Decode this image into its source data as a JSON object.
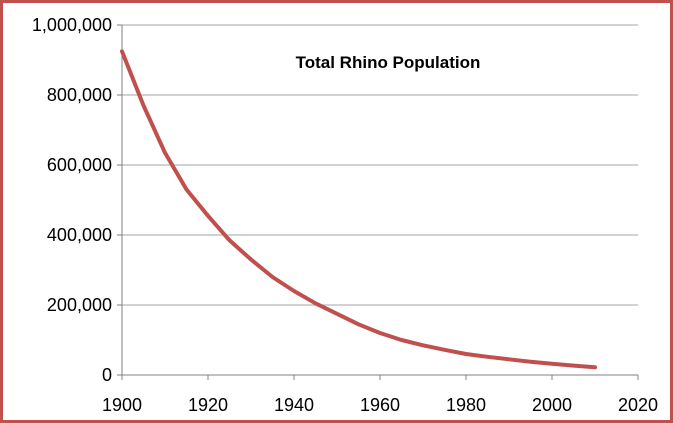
{
  "chart_data": {
    "type": "line",
    "title": "Total Rhino Population",
    "xlabel": "",
    "ylabel": "",
    "xlim": [
      1900,
      2020
    ],
    "ylim": [
      0,
      1000000
    ],
    "x_ticks": [
      1900,
      1920,
      1940,
      1960,
      1980,
      2000,
      2020
    ],
    "x_tick_labels": [
      "1900",
      "1920",
      "1940",
      "1960",
      "1980",
      "2000",
      "2020"
    ],
    "y_ticks": [
      0,
      200000,
      400000,
      600000,
      800000,
      1000000
    ],
    "y_tick_labels": [
      "0",
      "200,000",
      "400,000",
      "600,000",
      "800,000",
      "1,000,000"
    ],
    "grid": "horizontal",
    "legend": "none",
    "series": [
      {
        "color": "#c0504d",
        "x": [
          1900,
          1905,
          1910,
          1915,
          1920,
          1925,
          1930,
          1935,
          1940,
          1945,
          1950,
          1955,
          1960,
          1965,
          1970,
          1975,
          1980,
          1985,
          1990,
          1995,
          2000,
          2005,
          2010
        ],
        "y": [
          925000,
          770000,
          635000,
          530000,
          455000,
          385000,
          330000,
          280000,
          240000,
          205000,
          175000,
          145000,
          120000,
          100000,
          85000,
          72000,
          60000,
          52000,
          45000,
          38000,
          32000,
          27000,
          22000
        ]
      }
    ],
    "colors": {
      "border": "#c0504d",
      "grid": "#a6a6a6",
      "axis": "#808080"
    }
  }
}
